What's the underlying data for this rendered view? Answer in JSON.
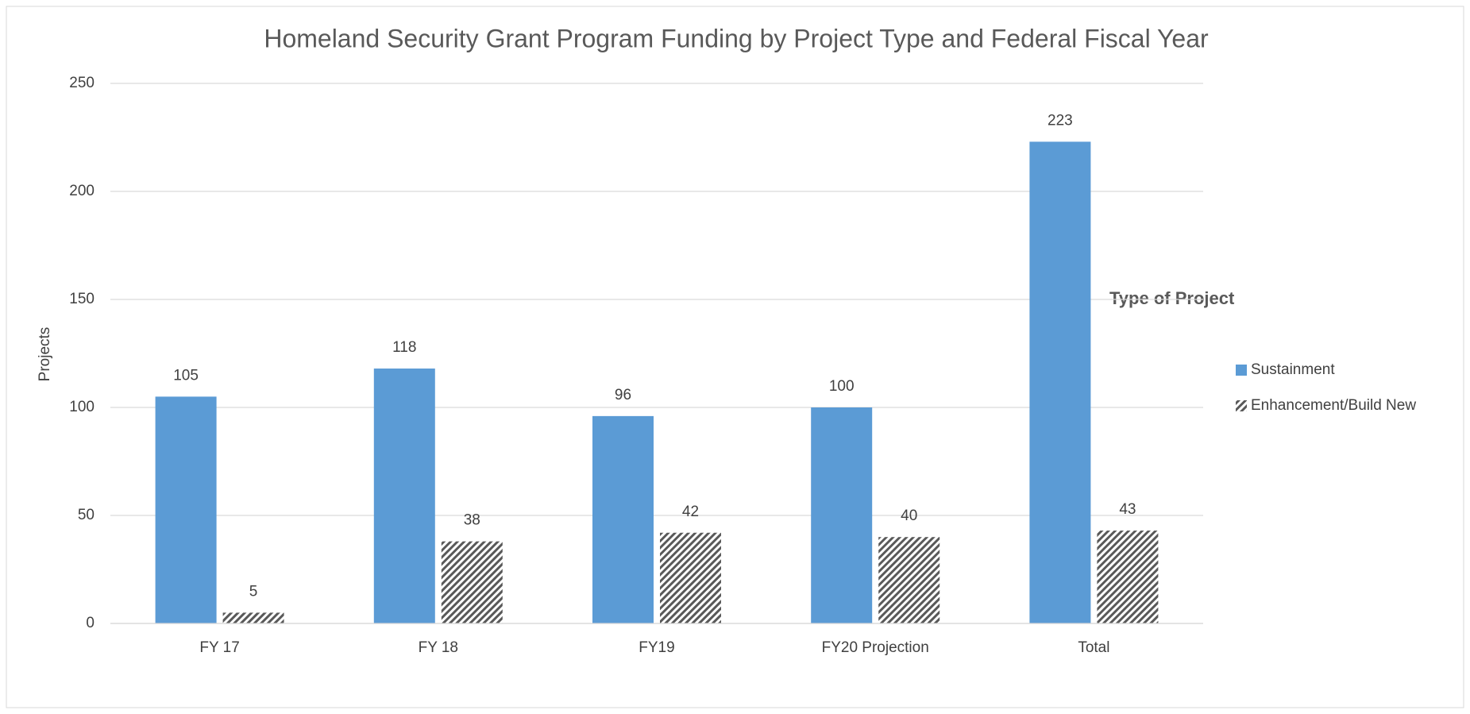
{
  "chart_data": {
    "type": "bar",
    "title": "Homeland Security Grant Program Funding by Project Type and Federal Fiscal Year",
    "y_label": "Projects",
    "legend_title": "Type of Project",
    "legend_position": "right",
    "categories": [
      "FY 17",
      "FY 18",
      "FY19",
      "FY20 Projection",
      "Total"
    ],
    "series": [
      {
        "name": "Sustainment",
        "color": "#5b9bd5",
        "pattern": "solid",
        "values": [
          105,
          118,
          96,
          100,
          223
        ]
      },
      {
        "name": "Enhancement/Build New",
        "color": "#595959",
        "pattern": "hatch",
        "values": [
          5,
          38,
          42,
          40,
          43
        ]
      }
    ],
    "ylim": [
      0,
      250
    ],
    "yticks": [
      0,
      50,
      100,
      150,
      200,
      250
    ],
    "grid": true
  }
}
